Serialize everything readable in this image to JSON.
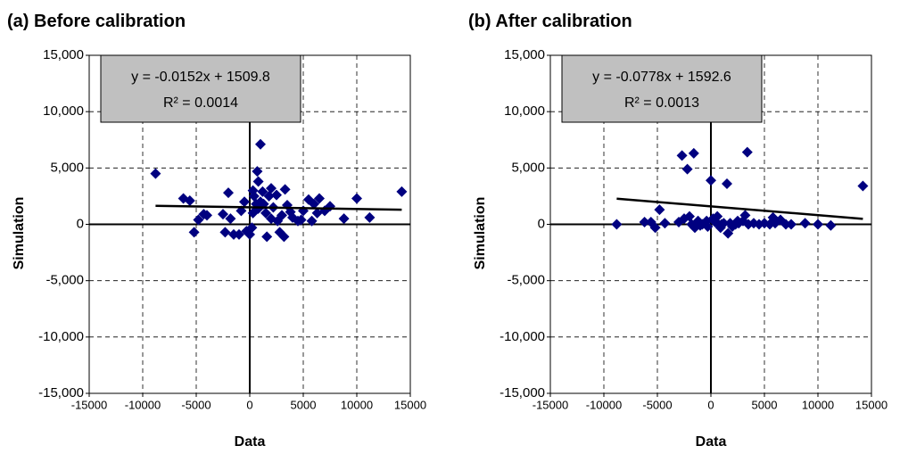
{
  "chart_data": [
    {
      "type": "scatter",
      "title": "(a) Before calibration",
      "x_label": "Data",
      "y_label": "Simulation",
      "color": "#000080",
      "grid": true,
      "xlim": [
        -15000,
        15000
      ],
      "xticks": [
        -15000,
        -10000,
        -5000,
        0,
        5000,
        10000,
        15000
      ],
      "ylim": [
        -15000,
        15000
      ],
      "yticks": [
        {
          "value": -15000,
          "label": "-15,000"
        },
        {
          "value": -10000,
          "label": "-10,000"
        },
        {
          "value": -5000,
          "label": "-5,000"
        },
        0,
        {
          "value": 5000,
          "label": "5,000"
        },
        {
          "value": 10000,
          "label": "10,000"
        },
        {
          "value": 15000,
          "label": "15,000"
        }
      ],
      "x": [
        -8800,
        -6200,
        -5600,
        -5200,
        -4800,
        -4300,
        -4000,
        -2500,
        -2300,
        -2000,
        -1800,
        -1500,
        -1000,
        -800,
        -500,
        -300,
        0,
        200,
        300,
        400,
        600,
        700,
        800,
        1000,
        1000,
        1200,
        1500,
        1600,
        1800,
        2000,
        2200,
        2500,
        2800,
        3000,
        3200,
        3300,
        3500,
        4000,
        4500,
        5000,
        5500,
        5800,
        6000,
        6500,
        7000,
        7500,
        8800,
        10000,
        11200,
        14200,
        300,
        800,
        1300,
        2000,
        2600,
        3800,
        4800,
        6300
      ],
      "values": [
        4500,
        2300,
        2100,
        -700,
        400,
        900,
        800,
        900,
        -700,
        2800,
        500,
        -900,
        -900,
        1200,
        2000,
        -600,
        -900,
        -300,
        3000,
        2500,
        1800,
        4700,
        3800,
        7100,
        2000,
        2900,
        1000,
        -1100,
        2500,
        3200,
        1500,
        2600,
        -700,
        800,
        -1100,
        3100,
        1700,
        600,
        300,
        1200,
        2200,
        300,
        1800,
        2300,
        1200,
        1600,
        500,
        2300,
        600,
        2900,
        1000,
        1400,
        1800,
        500,
        300,
        1100,
        400,
        1000
      ],
      "trendline": {
        "slope": -0.0152,
        "intercept": 1509.8,
        "equation": "y = -0.0152x + 1509.8",
        "r2": "R² = 0.0014"
      }
    },
    {
      "type": "scatter",
      "title": "(b) After calibration",
      "x_label": "Data",
      "y_label": "Simulation",
      "color": "#000080",
      "grid": true,
      "xlim": [
        -15000,
        15000
      ],
      "xticks": [
        -15000,
        -10000,
        -5000,
        0,
        5000,
        10000,
        15000
      ],
      "ylim": [
        -15000,
        15000
      ],
      "yticks": [
        {
          "value": -15000,
          "label": "-15,000"
        },
        {
          "value": -10000,
          "label": "-10,000"
        },
        {
          "value": -5000,
          "label": "-5,000"
        },
        0,
        {
          "value": 5000,
          "label": "5,000"
        },
        {
          "value": 10000,
          "label": "10,000"
        },
        {
          "value": 15000,
          "label": "15,000"
        }
      ],
      "x": [
        -8800,
        -6200,
        -5600,
        -5200,
        -4800,
        -4300,
        -3000,
        -2700,
        -2500,
        -2200,
        -2000,
        -1800,
        -1600,
        -1500,
        -1200,
        -1000,
        -800,
        -400,
        0,
        200,
        400,
        700,
        900,
        1200,
        1500,
        1600,
        1800,
        2000,
        2300,
        2600,
        3000,
        3200,
        3400,
        3500,
        4000,
        4500,
        5000,
        5500,
        5800,
        6000,
        6500,
        7000,
        7500,
        8800,
        10000,
        11200,
        14200,
        1000,
        2500,
        600,
        -300
      ],
      "values": [
        0,
        200,
        200,
        -300,
        1300,
        100,
        200,
        6100,
        500,
        4900,
        700,
        0,
        6300,
        -300,
        300,
        -100,
        0,
        300,
        3900,
        500,
        200,
        0,
        -300,
        100,
        3600,
        -800,
        100,
        -200,
        0,
        100,
        300,
        800,
        6400,
        0,
        100,
        0,
        100,
        0,
        600,
        100,
        400,
        0,
        0,
        100,
        0,
        -100,
        3400,
        0,
        300,
        700,
        -200
      ],
      "trendline": {
        "slope": -0.0778,
        "intercept": 1592.6,
        "equation": "y = -0.0778x + 1592.6",
        "r2": "R² = 0.0013"
      }
    }
  ]
}
